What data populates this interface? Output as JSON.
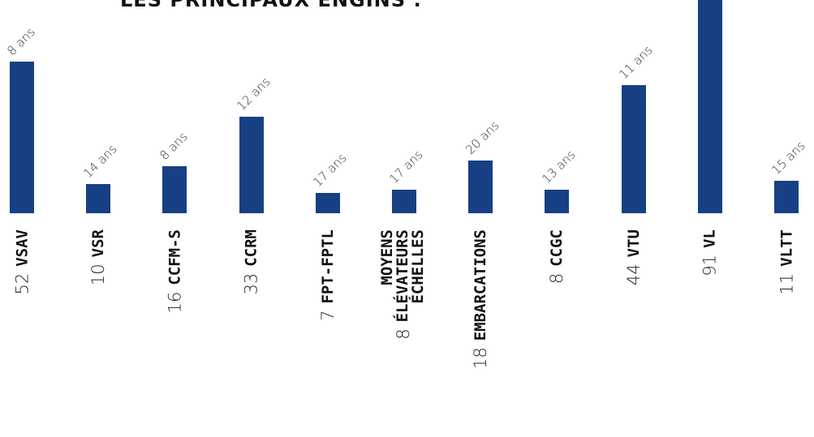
{
  "title": "LES PRINCIPAUX ENGINS :",
  "colors": {
    "bar": "#173f83"
  },
  "chart_data": {
    "type": "bar",
    "title": "LES PRINCIPAUX ENGINS :",
    "categories": [
      "VSAV",
      "VSR",
      "CCFM-S",
      "CCRM",
      "FPT-FPTL",
      "MOYENS ÉLÉVATEURS ÉCHELLES",
      "EMBARCATIONS",
      "CCGC",
      "VTU",
      "VL",
      "VLTT"
    ],
    "category_label_lines": [
      [
        "VSAV"
      ],
      [
        "VSR"
      ],
      [
        "CCFM-S"
      ],
      [
        "CCRM"
      ],
      [
        "FPT-FPTL"
      ],
      [
        "MOYENS",
        "ÉLÉVATEURS",
        "ÉCHELLES"
      ],
      [
        "EMBARCATIONS"
      ],
      [
        "CCGC"
      ],
      [
        "VTU"
      ],
      [
        "VL"
      ],
      [
        "VLTT"
      ]
    ],
    "values": [
      52,
      10,
      16,
      33,
      7,
      8,
      18,
      8,
      44,
      91,
      11
    ],
    "value_labels": [
      "52",
      "10",
      "16",
      "33",
      "7",
      "8",
      "18",
      "8",
      "44",
      "91",
      "11"
    ],
    "age_labels": [
      "8 ans",
      "14 ans",
      "8 ans",
      "12 ans",
      "17 ans",
      "17 ans",
      "20 ans",
      "13 ans",
      "11 ans",
      "",
      "15 ans"
    ],
    "ylim": [
      0,
      91
    ],
    "grid": false,
    "xlabel": "",
    "ylabel": ""
  }
}
